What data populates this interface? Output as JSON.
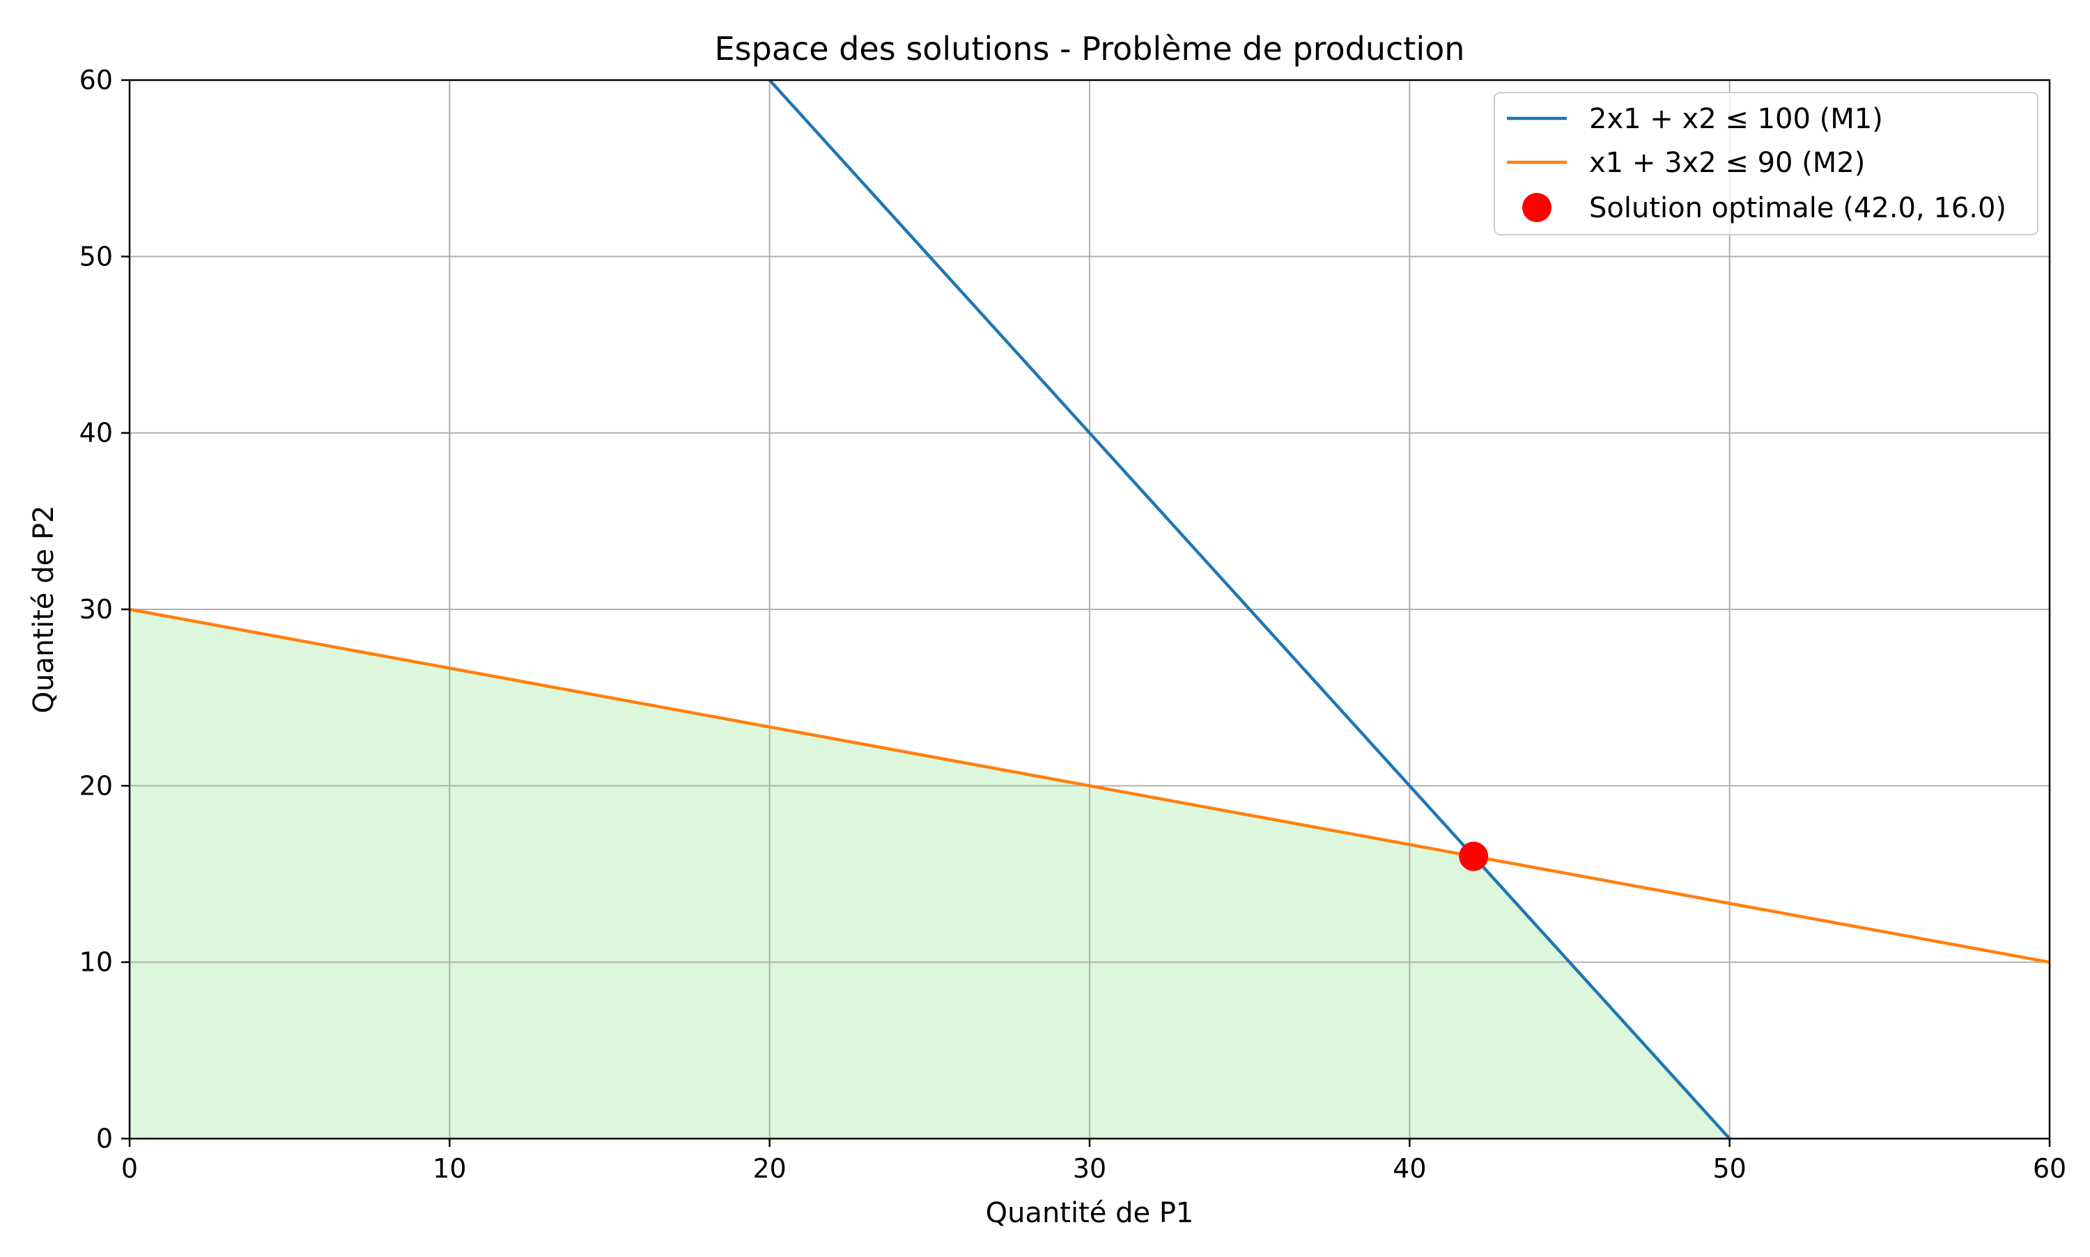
{
  "chart_data": {
    "type": "line",
    "title": "Espace des solutions - Problème de production",
    "xlabel": "Quantité de P1",
    "ylabel": "Quantité de P2",
    "xlim": [
      0,
      60
    ],
    "ylim": [
      0,
      60
    ],
    "x_ticks": [
      "0",
      "10",
      "20",
      "30",
      "40",
      "50",
      "60"
    ],
    "y_ticks": [
      "0",
      "10",
      "20",
      "30",
      "40",
      "50",
      "60"
    ],
    "grid": true,
    "legend_position": "top-right",
    "series": [
      {
        "name": "2x1 + x2 ≤ 100 (M1)",
        "color": "#1f77b4",
        "points": [
          [
            20,
            60
          ],
          [
            50,
            0
          ]
        ]
      },
      {
        "name": "x1 + 3x2 ≤ 90 (M2)",
        "color": "#ff7f0e",
        "points": [
          [
            0,
            30
          ],
          [
            60,
            10
          ]
        ]
      }
    ],
    "feasible_region": {
      "color": "#dcf7dc",
      "points": [
        [
          0,
          0
        ],
        [
          0,
          30
        ],
        [
          42,
          16
        ],
        [
          50,
          0
        ]
      ]
    },
    "optimal_point": {
      "name": "Solution optimale (42.0, 16.0)",
      "color": "#ff0000",
      "x": 42,
      "y": 16
    }
  }
}
